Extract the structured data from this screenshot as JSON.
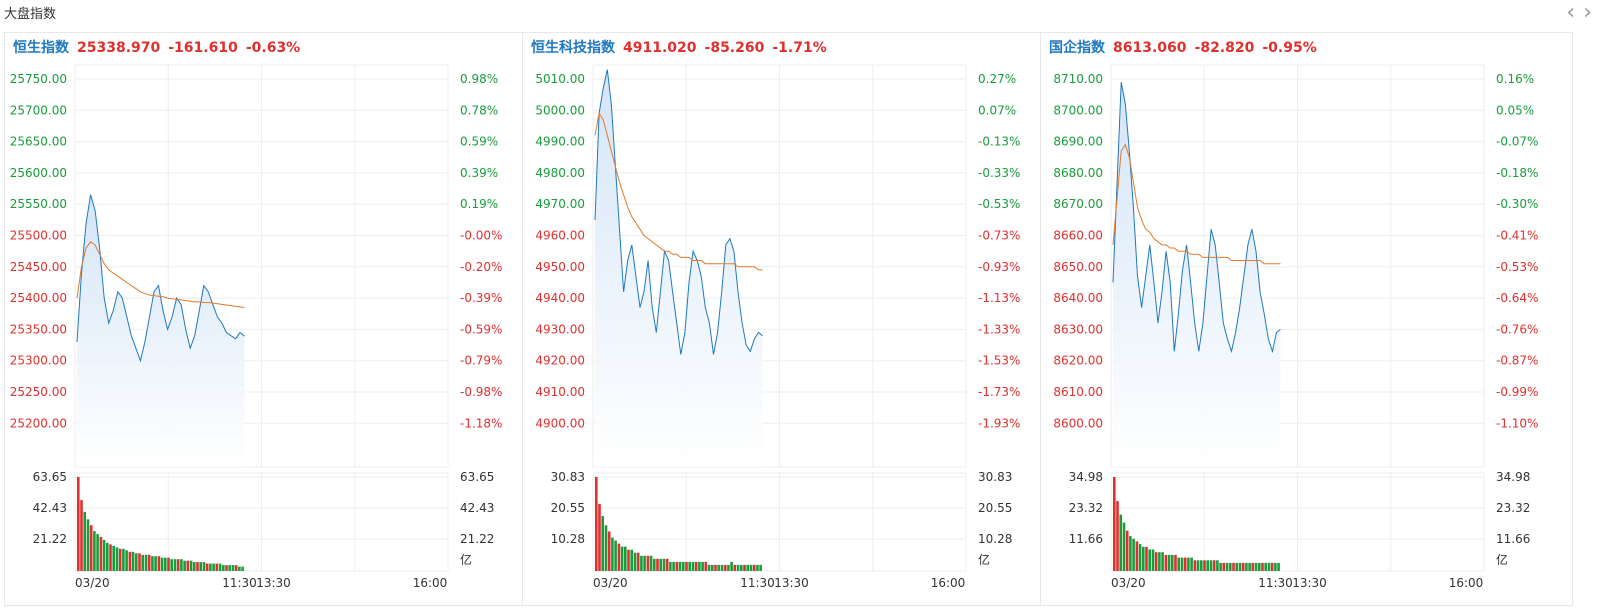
{
  "section_title": "大盘指数",
  "nav": {
    "prev": "‹",
    "next": "›"
  },
  "colors": {
    "up": "#e0302e",
    "down": "#1a9c3c",
    "line": "#1f78c1",
    "avg": "#e07a2a",
    "grid": "#eeeeee"
  },
  "panels": [
    {
      "name": "恒生指数",
      "price": "25338.970",
      "change": "-161.610",
      "pct": "-0.63%",
      "price_ticks": [
        "25750.00",
        "25700.00",
        "25650.00",
        "25600.00",
        "25550.00",
        "25500.00",
        "25450.00",
        "25400.00",
        "25350.00",
        "25300.00",
        "25250.00",
        "25200.00"
      ],
      "pct_ticks": [
        "0.98%",
        "0.78%",
        "0.59%",
        "0.39%",
        "0.19%",
        "-0.00%",
        "-0.20%",
        "-0.39%",
        "-0.59%",
        "-0.79%",
        "-0.98%",
        "-1.18%"
      ],
      "vol_ticks": [
        "63.65",
        "42.43",
        "21.22"
      ],
      "vol_unit": "亿",
      "time_ticks": [
        "03/20",
        "11:30",
        "13:30",
        "16:00"
      ],
      "chart_data": {
        "type": "line",
        "y_range": [
          25170,
          25770
        ],
        "price": [
          25330,
          25440,
          25520,
          25565,
          25540,
          25480,
          25400,
          25360,
          25380,
          25410,
          25400,
          25370,
          25340,
          25320,
          25300,
          25330,
          25370,
          25410,
          25420,
          25380,
          25350,
          25370,
          25400,
          25390,
          25350,
          25320,
          25340,
          25380,
          25420,
          25410,
          25390,
          25370,
          25360,
          25345,
          25340,
          25335,
          25345,
          25339
        ],
        "avg": [
          25400,
          25450,
          25480,
          25490,
          25485,
          25470,
          25455,
          25445,
          25440,
          25435,
          25430,
          25425,
          25420,
          25415,
          25410,
          25407,
          25405,
          25404,
          25403,
          25402,
          25400,
          25399,
          25398,
          25397,
          25396,
          25395,
          25394,
          25394,
          25393,
          25393,
          25392,
          25391,
          25390,
          25389,
          25388,
          25387,
          25386,
          25385
        ],
        "volume": [
          63.65,
          48,
          40,
          35,
          31,
          27,
          25,
          23,
          21,
          19,
          18,
          17,
          16,
          15,
          15,
          14,
          13,
          13,
          12,
          12,
          11,
          11,
          11,
          10,
          10,
          10,
          9,
          9,
          9,
          8,
          8,
          8,
          8,
          7,
          7,
          7,
          6,
          6,
          6,
          6,
          5,
          5,
          5,
          5,
          5,
          4,
          4,
          4,
          4,
          4,
          3,
          3
        ]
      }
    },
    {
      "name": "恒生科技指数",
      "price": "4911.020",
      "change": "-85.260",
      "pct": "-1.71%",
      "price_ticks": [
        "5010.00",
        "5000.00",
        "4990.00",
        "4980.00",
        "4970.00",
        "4960.00",
        "4950.00",
        "4940.00",
        "4930.00",
        "4920.00",
        "4910.00",
        "4900.00"
      ],
      "pct_ticks": [
        "0.27%",
        "0.07%",
        "-0.13%",
        "-0.33%",
        "-0.53%",
        "-0.73%",
        "-0.93%",
        "-1.13%",
        "-1.33%",
        "-1.53%",
        "-1.73%",
        "-1.93%"
      ],
      "vol_ticks": [
        "30.83",
        "20.55",
        "10.28"
      ],
      "vol_unit": "亿",
      "time_ticks": [
        "03/20",
        "11:30",
        "13:30",
        "16:00"
      ],
      "chart_data": {
        "type": "line",
        "y_range": [
          4893,
          5013
        ],
        "price": [
          4948,
          4982,
          4990,
          4996,
          4985,
          4965,
          4945,
          4925,
          4935,
          4940,
          4930,
          4920,
          4925,
          4935,
          4920,
          4912,
          4925,
          4938,
          4935,
          4925,
          4915,
          4905,
          4912,
          4928,
          4938,
          4935,
          4930,
          4920,
          4915,
          4905,
          4912,
          4925,
          4940,
          4942,
          4938,
          4925,
          4915,
          4908,
          4906,
          4910,
          4912,
          4911
        ],
        "avg": [
          4975,
          4982,
          4980,
          4975,
          4970,
          4965,
          4960,
          4956,
          4952,
          4949,
          4947,
          4945,
          4943,
          4942,
          4941,
          4940,
          4939,
          4938,
          4938,
          4937,
          4937,
          4936,
          4936,
          4936,
          4935,
          4935,
          4935,
          4934,
          4934,
          4934,
          4934,
          4934,
          4934,
          4934,
          4934,
          4933,
          4933,
          4933,
          4933,
          4933,
          4932,
          4932
        ],
        "volume": [
          30.83,
          22,
          18,
          15,
          13,
          11,
          10,
          9,
          8,
          8,
          7,
          7,
          6,
          6,
          5,
          5,
          5,
          5,
          4,
          4,
          4,
          4,
          4,
          3,
          3,
          3,
          3,
          3,
          3,
          3,
          3,
          3,
          3,
          3,
          3,
          2,
          2,
          2,
          2,
          2,
          2,
          2,
          3,
          2,
          2,
          2,
          2,
          2,
          2,
          2,
          2,
          2
        ]
      }
    },
    {
      "name": "国企指数",
      "price": "8613.060",
      "change": "-82.820",
      "pct": "-0.95%",
      "price_ticks": [
        "8710.00",
        "8700.00",
        "8690.00",
        "8680.00",
        "8670.00",
        "8660.00",
        "8650.00",
        "8640.00",
        "8630.00",
        "8620.00",
        "8610.00",
        "8600.00"
      ],
      "pct_ticks": [
        "0.16%",
        "0.05%",
        "-0.07%",
        "-0.18%",
        "-0.30%",
        "-0.41%",
        "-0.53%",
        "-0.64%",
        "-0.76%",
        "-0.87%",
        "-0.99%",
        "-1.10%"
      ],
      "vol_ticks": [
        "34.98",
        "23.32",
        "11.66"
      ],
      "vol_unit": "亿",
      "time_ticks": [
        "03/20",
        "11:30",
        "13:30",
        "16:00"
      ],
      "chart_data": {
        "type": "line",
        "y_range": [
          8593,
          8713
        ],
        "price": [
          8628,
          8660,
          8692,
          8685,
          8670,
          8652,
          8630,
          8620,
          8630,
          8640,
          8628,
          8615,
          8625,
          8638,
          8628,
          8606,
          8618,
          8632,
          8640,
          8628,
          8615,
          8606,
          8615,
          8630,
          8645,
          8640,
          8628,
          8615,
          8610,
          8606,
          8612,
          8620,
          8630,
          8640,
          8645,
          8638,
          8625,
          8618,
          8610,
          8606,
          8612,
          8613
        ],
        "avg": [
          8640,
          8655,
          8670,
          8672,
          8668,
          8660,
          8652,
          8648,
          8645,
          8644,
          8642,
          8641,
          8640,
          8640,
          8639,
          8639,
          8638,
          8638,
          8638,
          8637,
          8637,
          8637,
          8636,
          8636,
          8636,
          8636,
          8636,
          8636,
          8636,
          8635,
          8635,
          8635,
          8635,
          8635,
          8635,
          8635,
          8635,
          8634,
          8634,
          8634,
          8634,
          8634
        ],
        "volume": [
          34.98,
          26,
          21,
          18,
          15,
          13,
          12,
          11,
          10,
          9,
          9,
          8,
          8,
          7,
          7,
          7,
          6,
          6,
          6,
          6,
          5,
          5,
          5,
          5,
          5,
          4,
          4,
          4,
          4,
          4,
          4,
          4,
          4,
          3,
          3,
          3,
          3,
          3,
          3,
          3,
          3,
          3,
          3,
          3,
          3,
          3,
          3,
          3,
          3,
          3,
          3,
          3
        ]
      }
    }
  ]
}
